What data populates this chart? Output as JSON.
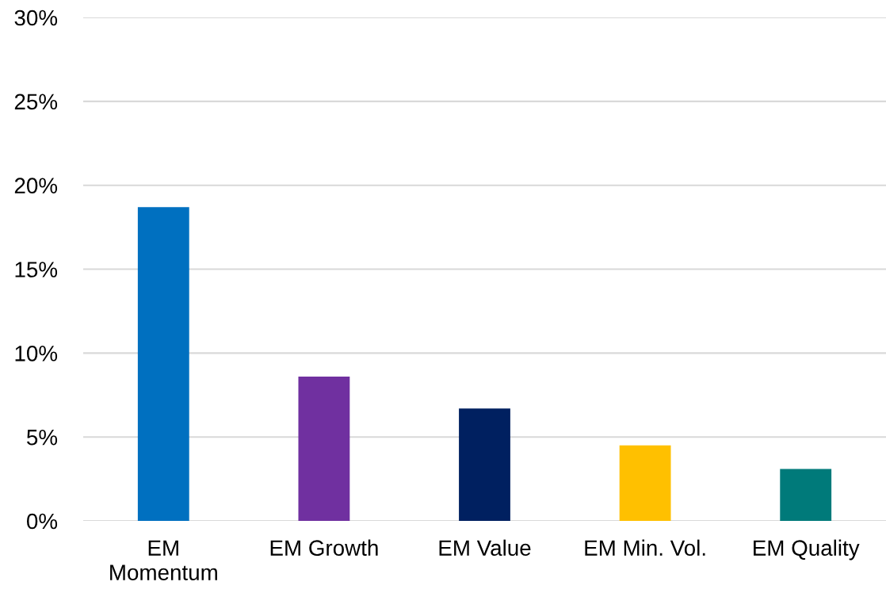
{
  "chart_data": {
    "type": "bar",
    "categories": [
      "EM\nMomentum",
      "EM Growth",
      "EM Value",
      "EM Min. Vol.",
      "EM Quality"
    ],
    "values": [
      18.7,
      8.6,
      6.7,
      4.5,
      3.1
    ],
    "colors": [
      "#0070c0",
      "#7030a0",
      "#002060",
      "#ffc000",
      "#007a7a"
    ],
    "ylim": [
      0,
      30
    ],
    "yticks": [
      {
        "value": 0,
        "label": "0%"
      },
      {
        "value": 5,
        "label": "5%"
      },
      {
        "value": 10,
        "label": "10%"
      },
      {
        "value": 15,
        "label": "15%"
      },
      {
        "value": 20,
        "label": "20%"
      },
      {
        "value": 25,
        "label": "25%"
      },
      {
        "value": 30,
        "label": "30%"
      }
    ],
    "grid": "y",
    "legend": false
  }
}
